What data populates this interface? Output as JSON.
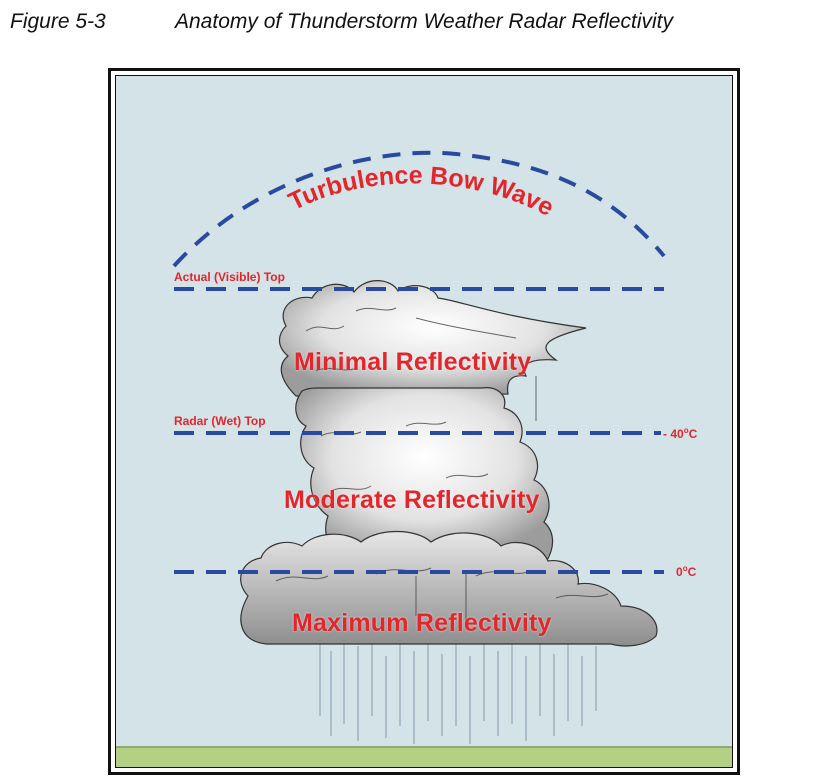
{
  "figure": {
    "number": "Figure 5-3",
    "title": "Anatomy of Thunderstorm Weather Radar Reflectivity"
  },
  "labels": {
    "bow_wave": "Turbulence Bow Wave",
    "actual_top": "Actual (Visible) Top",
    "radar_top": "Radar (Wet) Top",
    "minimal": "Minimal Reflectivity",
    "moderate": "Moderate Reflectivity",
    "maximum": "Maximum Reflectivity"
  },
  "temperatures": {
    "upper": {
      "value": "- 40",
      "unit": "C",
      "degree": "o"
    },
    "lower": {
      "value": "0",
      "unit": "C",
      "degree": "o"
    }
  },
  "colors": {
    "sky": "#d3e3e8",
    "label_red": "#e2262c",
    "dash_blue": "#2a4aa0",
    "ground": "#b4d183"
  }
}
